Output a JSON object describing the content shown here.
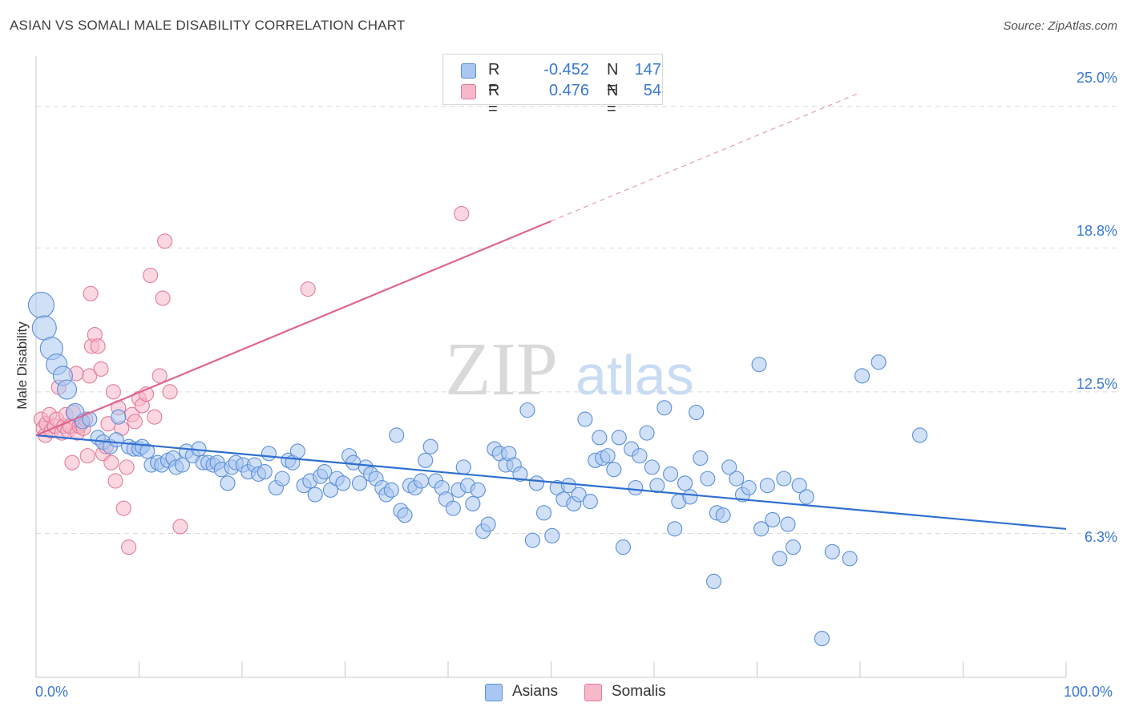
{
  "header": {
    "title": "ASIAN VS SOMALI MALE DISABILITY CORRELATION CHART",
    "source": "Source: ZipAtlas.com"
  },
  "legend_top": {
    "rows": [
      {
        "r_label": "R =",
        "r_value": "-0.452",
        "n_label": "N =",
        "n_value": "147",
        "color": "#a9c7f0",
        "border": "#5b8fd9"
      },
      {
        "r_label": "R =",
        "r_value": "0.476",
        "n_label": "N =",
        "n_value": "54",
        "color": "#f7b8c9",
        "border": "#e27a9a"
      }
    ]
  },
  "legend_bottom": [
    {
      "label": "Asians",
      "color": "#a9c7f0",
      "border": "#5b8fd9"
    },
    {
      "label": "Somalis",
      "color": "#f7b8c9",
      "border": "#e27a9a"
    }
  ],
  "axes": {
    "ylabel": "Male Disability",
    "x_tick_labels": {
      "left": "0.0%",
      "right": "100.0%"
    },
    "y_tick_labels": [
      "6.3%",
      "12.5%",
      "18.8%",
      "25.0%"
    ]
  },
  "watermark": {
    "zip": "ZIP",
    "atlas": "atlas"
  },
  "chart_data": {
    "type": "scatter",
    "title": "ASIAN VS SOMALI MALE DISABILITY CORRELATION CHART",
    "xlabel": "",
    "ylabel": "Male Disability",
    "xlim": [
      0,
      100
    ],
    "ylim": [
      0,
      27.2
    ],
    "y_ticks": [
      6.3,
      12.5,
      18.8,
      25.0
    ],
    "grid": true,
    "legend_position": "top-center",
    "series": [
      {
        "name": "Asians",
        "color": "#5b8fd9",
        "fill": "#a9c7f0",
        "r": -0.452,
        "n": 147,
        "trend": {
          "x": [
            0,
            100
          ],
          "y": [
            10.6,
            6.5
          ],
          "dashed_from": null
        },
        "points": [
          [
            0.5,
            16.3
          ],
          [
            0.8,
            15.3
          ],
          [
            1.5,
            14.4
          ],
          [
            2.0,
            13.7
          ],
          [
            2.6,
            13.2
          ],
          [
            3.0,
            12.6
          ],
          [
            3.8,
            11.6
          ],
          [
            4.5,
            11.2
          ],
          [
            5.2,
            11.3
          ],
          [
            6.0,
            10.5
          ],
          [
            6.5,
            10.3
          ],
          [
            7.2,
            10.1
          ],
          [
            7.8,
            10.4
          ],
          [
            8.0,
            11.4
          ],
          [
            9.0,
            10.1
          ],
          [
            9.5,
            10.0
          ],
          [
            10.0,
            10.0
          ],
          [
            10.3,
            10.1
          ],
          [
            10.8,
            9.9
          ],
          [
            11.2,
            9.3
          ],
          [
            11.8,
            9.4
          ],
          [
            12.2,
            9.3
          ],
          [
            12.8,
            9.5
          ],
          [
            13.3,
            9.6
          ],
          [
            13.6,
            9.2
          ],
          [
            14.2,
            9.3
          ],
          [
            14.6,
            9.9
          ],
          [
            15.2,
            9.7
          ],
          [
            15.8,
            10.0
          ],
          [
            16.2,
            9.4
          ],
          [
            16.7,
            9.4
          ],
          [
            17.2,
            9.3
          ],
          [
            17.6,
            9.4
          ],
          [
            18.0,
            9.1
          ],
          [
            18.6,
            8.5
          ],
          [
            19.0,
            9.2
          ],
          [
            19.4,
            9.4
          ],
          [
            20.1,
            9.3
          ],
          [
            20.6,
            9.0
          ],
          [
            21.2,
            9.3
          ],
          [
            21.6,
            8.9
          ],
          [
            22.2,
            9.0
          ],
          [
            22.6,
            9.8
          ],
          [
            23.3,
            8.3
          ],
          [
            23.9,
            8.7
          ],
          [
            24.5,
            9.5
          ],
          [
            24.9,
            9.4
          ],
          [
            25.4,
            9.9
          ],
          [
            26.0,
            8.4
          ],
          [
            26.6,
            8.6
          ],
          [
            27.1,
            8.0
          ],
          [
            27.6,
            8.8
          ],
          [
            28.0,
            9.0
          ],
          [
            28.6,
            8.2
          ],
          [
            29.2,
            8.7
          ],
          [
            29.8,
            8.5
          ],
          [
            30.4,
            9.7
          ],
          [
            30.8,
            9.4
          ],
          [
            31.4,
            8.5
          ],
          [
            32.0,
            9.2
          ],
          [
            32.5,
            8.9
          ],
          [
            33.0,
            8.7
          ],
          [
            33.6,
            8.3
          ],
          [
            34.0,
            8.0
          ],
          [
            34.5,
            8.2
          ],
          [
            35.0,
            10.6
          ],
          [
            35.4,
            7.3
          ],
          [
            35.8,
            7.1
          ],
          [
            36.3,
            8.4
          ],
          [
            36.8,
            8.3
          ],
          [
            37.4,
            8.6
          ],
          [
            37.8,
            9.5
          ],
          [
            38.3,
            10.1
          ],
          [
            38.8,
            8.6
          ],
          [
            39.4,
            8.3
          ],
          [
            39.8,
            7.8
          ],
          [
            40.5,
            7.4
          ],
          [
            41.0,
            8.2
          ],
          [
            41.5,
            9.2
          ],
          [
            41.9,
            8.4
          ],
          [
            42.4,
            7.6
          ],
          [
            42.9,
            8.2
          ],
          [
            43.4,
            6.4
          ],
          [
            43.9,
            6.7
          ],
          [
            44.5,
            10.0
          ],
          [
            45.0,
            9.8
          ],
          [
            45.6,
            9.3
          ],
          [
            45.9,
            9.8
          ],
          [
            46.4,
            9.3
          ],
          [
            47.0,
            8.9
          ],
          [
            47.7,
            11.7
          ],
          [
            48.2,
            6.0
          ],
          [
            48.6,
            8.5
          ],
          [
            49.3,
            7.2
          ],
          [
            50.1,
            6.2
          ],
          [
            50.6,
            8.3
          ],
          [
            51.2,
            7.8
          ],
          [
            51.7,
            8.4
          ],
          [
            52.2,
            7.6
          ],
          [
            52.7,
            8.0
          ],
          [
            53.3,
            11.3
          ],
          [
            53.8,
            7.7
          ],
          [
            54.3,
            9.5
          ],
          [
            54.7,
            10.5
          ],
          [
            55.0,
            9.6
          ],
          [
            55.5,
            9.7
          ],
          [
            56.1,
            9.1
          ],
          [
            56.6,
            10.5
          ],
          [
            57.0,
            5.7
          ],
          [
            57.8,
            10.0
          ],
          [
            58.2,
            8.3
          ],
          [
            58.6,
            9.7
          ],
          [
            59.3,
            10.7
          ],
          [
            59.8,
            9.2
          ],
          [
            60.3,
            8.4
          ],
          [
            61.0,
            11.8
          ],
          [
            61.6,
            8.9
          ],
          [
            62.0,
            6.5
          ],
          [
            62.4,
            7.7
          ],
          [
            63.0,
            8.5
          ],
          [
            63.5,
            7.9
          ],
          [
            64.1,
            11.6
          ],
          [
            64.5,
            9.6
          ],
          [
            65.2,
            8.7
          ],
          [
            65.8,
            4.2
          ],
          [
            66.1,
            7.2
          ],
          [
            66.7,
            7.1
          ],
          [
            67.3,
            9.2
          ],
          [
            68.0,
            8.7
          ],
          [
            68.6,
            8.0
          ],
          [
            69.2,
            8.3
          ],
          [
            70.2,
            13.7
          ],
          [
            70.4,
            6.5
          ],
          [
            71.0,
            8.4
          ],
          [
            71.5,
            6.9
          ],
          [
            72.2,
            5.2
          ],
          [
            72.6,
            8.7
          ],
          [
            73.0,
            6.7
          ],
          [
            73.5,
            5.7
          ],
          [
            74.1,
            8.4
          ],
          [
            74.8,
            7.9
          ],
          [
            76.3,
            1.7
          ],
          [
            77.3,
            5.5
          ],
          [
            79.0,
            5.2
          ],
          [
            80.2,
            13.2
          ],
          [
            81.8,
            13.8
          ],
          [
            85.8,
            10.6
          ]
        ]
      },
      {
        "name": "Somalis",
        "color": "#e27a9a",
        "fill": "#f7b8c9",
        "r": 0.476,
        "n": 54,
        "trend": {
          "x": [
            0,
            80
          ],
          "y": [
            10.6,
            25.6
          ],
          "dashed_from": 50
        },
        "points": [
          [
            0.5,
            11.3
          ],
          [
            0.7,
            10.9
          ],
          [
            0.9,
            10.6
          ],
          [
            1.0,
            11.1
          ],
          [
            1.3,
            11.5
          ],
          [
            1.5,
            10.8
          ],
          [
            1.8,
            11.0
          ],
          [
            2.0,
            11.3
          ],
          [
            2.2,
            12.7
          ],
          [
            2.5,
            10.7
          ],
          [
            2.7,
            11.0
          ],
          [
            2.9,
            11.5
          ],
          [
            3.1,
            10.8
          ],
          [
            3.3,
            11.0
          ],
          [
            3.5,
            9.4
          ],
          [
            3.6,
            11.6
          ],
          [
            3.9,
            13.3
          ],
          [
            4.0,
            10.7
          ],
          [
            4.2,
            11.0
          ],
          [
            4.4,
            11.1
          ],
          [
            4.6,
            10.9
          ],
          [
            4.8,
            11.3
          ],
          [
            5.0,
            9.7
          ],
          [
            5.2,
            13.2
          ],
          [
            5.4,
            14.5
          ],
          [
            5.7,
            15.0
          ],
          [
            6.0,
            14.5
          ],
          [
            6.3,
            13.5
          ],
          [
            6.5,
            9.8
          ],
          [
            6.8,
            10.1
          ],
          [
            7.0,
            11.1
          ],
          [
            7.3,
            9.4
          ],
          [
            7.5,
            12.5
          ],
          [
            7.7,
            8.6
          ],
          [
            8.0,
            11.8
          ],
          [
            8.3,
            10.9
          ],
          [
            8.5,
            7.4
          ],
          [
            8.8,
            9.2
          ],
          [
            9.0,
            5.7
          ],
          [
            9.3,
            11.5
          ],
          [
            9.6,
            11.2
          ],
          [
            10.0,
            12.2
          ],
          [
            10.3,
            11.9
          ],
          [
            10.7,
            12.4
          ],
          [
            11.1,
            17.6
          ],
          [
            11.5,
            11.4
          ],
          [
            12.0,
            13.2
          ],
          [
            12.3,
            16.6
          ],
          [
            12.5,
            19.1
          ],
          [
            13.0,
            12.5
          ],
          [
            14.0,
            6.6
          ],
          [
            5.3,
            16.8
          ],
          [
            26.4,
            17.0
          ],
          [
            41.3,
            20.3
          ]
        ]
      }
    ]
  }
}
